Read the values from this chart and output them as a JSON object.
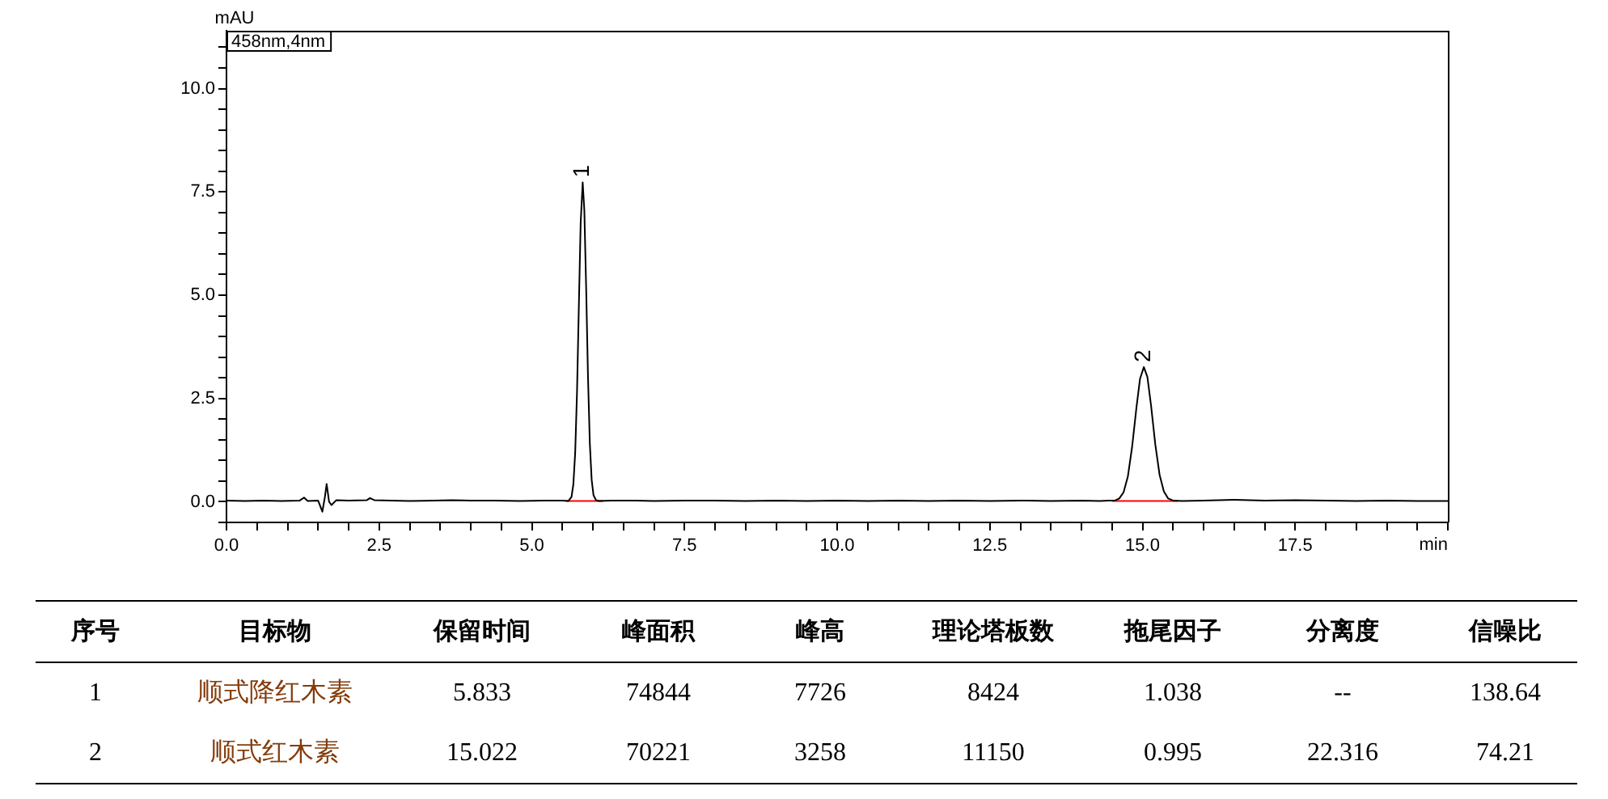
{
  "chart_data": [
    {
      "type": "line",
      "xlabel": "min",
      "ylabel": "mAU",
      "annotations": [
        "458nm,4nm",
        {
          "text": "1",
          "x": 5.833,
          "y": 7.73
        },
        {
          "text": "2",
          "x": 15.022,
          "y": 3.26
        }
      ],
      "series": [
        {
          "color": "#000000",
          "x": [
            0,
            0.3,
            0.6,
            0.9,
            1.2,
            1.27,
            1.33,
            1.5,
            1.57,
            1.61,
            1.64,
            1.68,
            1.72,
            1.8,
            2.0,
            2.3,
            2.35,
            2.42,
            2.7,
            3.0,
            3.4,
            3.7,
            4.0,
            4.4,
            4.8,
            5.2,
            5.5,
            5.6,
            5.65,
            5.68,
            5.71,
            5.74,
            5.77,
            5.8,
            5.833,
            5.86,
            5.89,
            5.92,
            5.95,
            5.98,
            6.01,
            6.05,
            6.1,
            6.3,
            6.7,
            7.0,
            7.5,
            8.0,
            8.5,
            9.0,
            9.5,
            10.0,
            10.5,
            11.0,
            11.5,
            12.0,
            12.5,
            13.0,
            13.5,
            14.0,
            14.3,
            14.45,
            14.55,
            14.62,
            14.69,
            14.76,
            14.83,
            14.9,
            14.96,
            15.022,
            15.08,
            15.14,
            15.21,
            15.28,
            15.35,
            15.42,
            15.5,
            15.65,
            16.0,
            16.5,
            17.0,
            17.5,
            18.0,
            18.5,
            19.0,
            19.5,
            20.0
          ],
          "values": [
            0.03,
            0.02,
            0.03,
            0.02,
            0.03,
            0.1,
            0.02,
            0.03,
            -0.24,
            0.1,
            0.43,
            0.0,
            -0.08,
            0.04,
            0.03,
            0.04,
            0.09,
            0.04,
            0.03,
            0.02,
            0.03,
            0.04,
            0.03,
            0.03,
            0.02,
            0.03,
            0.03,
            0.02,
            0.12,
            0.42,
            1.18,
            2.65,
            4.73,
            6.75,
            7.73,
            7.05,
            5.16,
            3.02,
            1.41,
            0.53,
            0.16,
            0.04,
            0.02,
            0.03,
            0.03,
            0.02,
            0.03,
            0.03,
            0.02,
            0.03,
            0.02,
            0.03,
            0.02,
            0.03,
            0.02,
            0.03,
            0.02,
            0.03,
            0.02,
            0.03,
            0.02,
            0.03,
            0.03,
            0.08,
            0.23,
            0.61,
            1.33,
            2.27,
            2.98,
            3.26,
            3.02,
            2.33,
            1.38,
            0.65,
            0.25,
            0.08,
            0.03,
            0.02,
            0.03,
            0.05,
            0.03,
            0.04,
            0.03,
            0.02,
            0.03,
            0.02,
            0.02
          ]
        },
        {
          "color": "#ff0000",
          "x": [
            5.57,
            6.16
          ],
          "values": [
            0.02,
            0.02
          ]
        },
        {
          "color": "#ff0000",
          "x": [
            14.51,
            15.57
          ],
          "values": [
            0.02,
            0.02
          ]
        }
      ],
      "xlim": [
        0,
        20
      ],
      "xticks": [
        {
          "value": 0,
          "label": "0.0"
        },
        {
          "value": 0.5,
          "label": null
        },
        {
          "value": 1,
          "label": null
        },
        {
          "value": 1.5,
          "label": null
        },
        {
          "value": 2,
          "label": null
        },
        2.5,
        {
          "value": 3,
          "label": null
        },
        {
          "value": 3.5,
          "label": null
        },
        {
          "value": 4,
          "label": null
        },
        {
          "value": 4.5,
          "label": null
        },
        {
          "value": 5,
          "label": "5.0"
        },
        {
          "value": 5.5,
          "label": null
        },
        {
          "value": 6,
          "label": null
        },
        {
          "value": 6.5,
          "label": null
        },
        {
          "value": 7,
          "label": null
        },
        7.5,
        {
          "value": 8,
          "label": null
        },
        {
          "value": 8.5,
          "label": null
        },
        {
          "value": 9,
          "label": null
        },
        {
          "value": 9.5,
          "label": null
        },
        {
          "value": 10,
          "label": "10.0"
        },
        {
          "value": 10.5,
          "label": null
        },
        {
          "value": 11,
          "label": null
        },
        {
          "value": 11.5,
          "label": null
        },
        {
          "value": 12,
          "label": null
        },
        12.5,
        {
          "value": 13,
          "label": null
        },
        {
          "value": 13.5,
          "label": null
        },
        {
          "value": 14,
          "label": null
        },
        {
          "value": 14.5,
          "label": null
        },
        {
          "value": 15,
          "label": "15.0"
        },
        {
          "value": 15.5,
          "label": null
        },
        {
          "value": 16,
          "label": null
        },
        {
          "value": 16.5,
          "label": null
        },
        {
          "value": 17,
          "label": null
        },
        17.5,
        {
          "value": 18,
          "label": null
        },
        {
          "value": 18.5,
          "label": null
        },
        {
          "value": 19,
          "label": null
        },
        {
          "value": 19.5,
          "label": null
        },
        {
          "value": 20,
          "label": null
        }
      ],
      "ylim": [
        -0.5,
        11.4
      ],
      "yticks": [
        {
          "value": -0.5,
          "label": null
        },
        {
          "value": 0,
          "label": "0.0"
        },
        {
          "value": 0.5,
          "label": null
        },
        {
          "value": 1,
          "label": null
        },
        {
          "value": 1.5,
          "label": null
        },
        {
          "value": 2,
          "label": null
        },
        2.5,
        {
          "value": 3,
          "label": null
        },
        {
          "value": 3.5,
          "label": null
        },
        {
          "value": 4,
          "label": null
        },
        {
          "value": 4.5,
          "label": null
        },
        {
          "value": 5,
          "label": "5.0"
        },
        {
          "value": 5.5,
          "label": null
        },
        {
          "value": 6,
          "label": null
        },
        {
          "value": 6.5,
          "label": null
        },
        {
          "value": 7,
          "label": null
        },
        7.5,
        {
          "value": 8,
          "label": null
        },
        {
          "value": 8.5,
          "label": null
        },
        {
          "value": 9,
          "label": null
        },
        {
          "value": 9.5,
          "label": null
        },
        {
          "value": 10,
          "label": "10.0"
        },
        {
          "value": 10.5,
          "label": null
        },
        {
          "value": 11,
          "label": null
        }
      ],
      "legend": false,
      "marker": "none",
      "line_style": "solid"
    },
    {
      "type": "other",
      "categories": [
        "序号",
        "目标物",
        "保留时间",
        "峰面积",
        "峰高",
        "理论塔板数",
        "拖尾因子",
        "分离度",
        "信噪比"
      ],
      "annotations": [
        "1",
        "顺式降红木素",
        "5.833",
        "74844",
        "7726",
        "8424",
        "1.038",
        "--",
        "138.64",
        "2",
        "顺式红木素",
        "15.022",
        "70221",
        "3258",
        "11150",
        "0.995",
        "22.316",
        "74.21"
      ]
    }
  ]
}
